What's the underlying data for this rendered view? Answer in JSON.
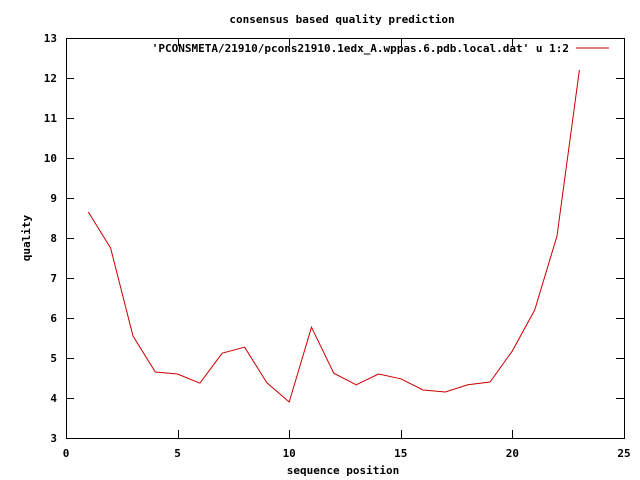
{
  "chart_data": {
    "type": "line",
    "title": "consensus based quality prediction",
    "xlabel": "sequence position",
    "ylabel": "quality",
    "xlim": [
      0,
      25
    ],
    "ylim": [
      3,
      13
    ],
    "xticks": [
      0,
      5,
      10,
      15,
      20,
      25
    ],
    "yticks": [
      3,
      4,
      5,
      6,
      7,
      8,
      9,
      10,
      11,
      12,
      13
    ],
    "grid": false,
    "legend_position": "top-right",
    "series": [
      {
        "name": "'PCONSMETA/21910/pcons21910.1edx_A.wppas.6.pdb.local.dat' u 1:2",
        "color": "#cc0000",
        "x": [
          1,
          2,
          3,
          4,
          5,
          6,
          7,
          8,
          9,
          10,
          11,
          12,
          13,
          14,
          15,
          16,
          17,
          18,
          19,
          20,
          21,
          22,
          23
        ],
        "y": [
          8.65,
          7.75,
          5.55,
          4.65,
          4.6,
          4.37,
          5.12,
          5.27,
          4.38,
          3.9,
          5.77,
          4.62,
          4.33,
          4.6,
          4.48,
          4.2,
          4.15,
          4.33,
          4.4,
          5.18,
          6.2,
          8.05,
          12.2
        ]
      }
    ]
  }
}
